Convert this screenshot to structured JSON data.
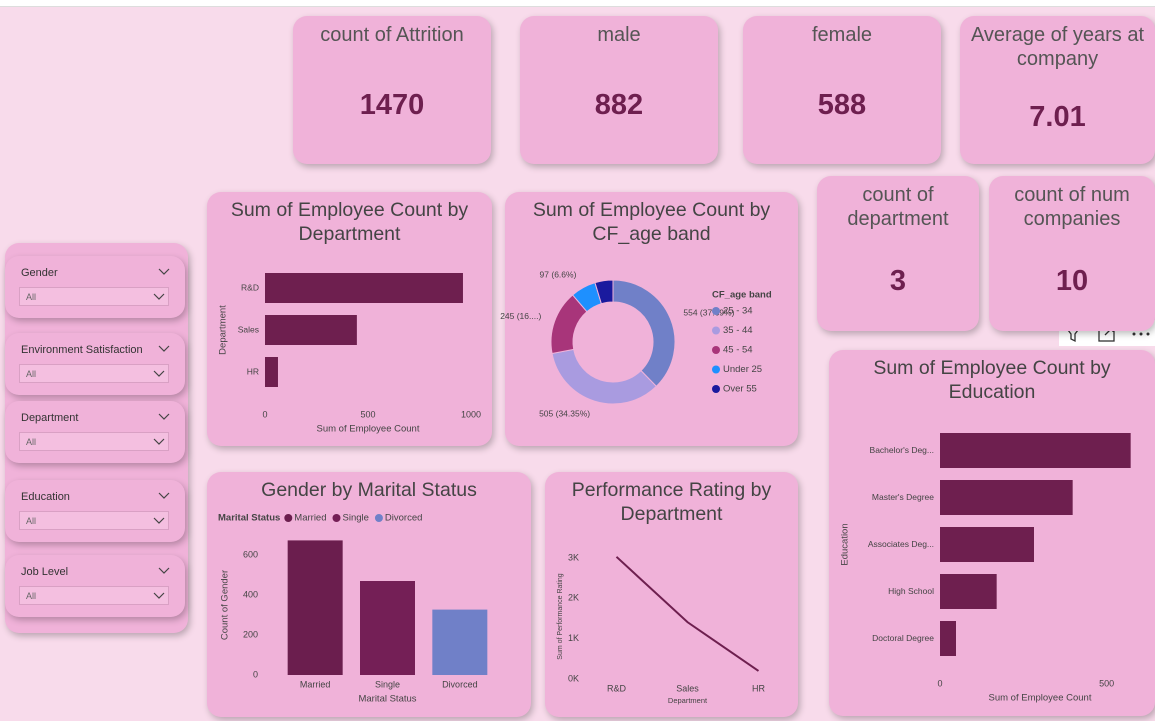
{
  "cards": [
    {
      "title": "count of Attrition",
      "value": 1470
    },
    {
      "title": "male",
      "value": 882
    },
    {
      "title": "female",
      "value": 588
    },
    {
      "title": "Average of years at company",
      "value": 7.01
    },
    {
      "title": "count of department",
      "value": 3
    },
    {
      "title": "count of num companies",
      "value": 10
    }
  ],
  "slicers": [
    {
      "label": "Gender",
      "selection": "All"
    },
    {
      "label": "Environment Satisfaction",
      "selection": "All"
    },
    {
      "label": "Department",
      "selection": "All"
    },
    {
      "label": "Education",
      "selection": "All"
    },
    {
      "label": "Job Level",
      "selection": "All"
    }
  ],
  "chart_data": [
    {
      "type": "bar",
      "orientation": "horizontal",
      "title": "Sum of Employee Count by Department",
      "categories": [
        "R&D",
        "Sales",
        "HR"
      ],
      "values": [
        961,
        446,
        63
      ],
      "color": "#6e1f4f",
      "xlim": [
        0,
        1000
      ],
      "xticks": [
        0,
        500,
        1000
      ],
      "x_label": "Sum of Employee Count",
      "y_label": "Department",
      "grid": false
    },
    {
      "type": "donut",
      "title": "Sum of Employee Count by CF_age band",
      "legend_title": "CF_age band",
      "categories": [
        "25 - 34",
        "35 - 44",
        "45 - 54",
        "Under 25",
        "Over 55"
      ],
      "values": [
        554,
        505,
        245,
        97,
        69
      ],
      "value_labels": [
        "554 (37.69%)",
        "505 (34.35%)",
        "245 (16....)",
        "97 (6.6%)",
        null
      ],
      "colors": [
        "#7080c8",
        "#a99be0",
        "#a8357a",
        "#1e90ff",
        "#1a1a9e"
      ]
    },
    {
      "type": "bar",
      "orientation": "vertical",
      "title": "Gender by Marital Status",
      "legend_title": "Marital Status",
      "categories": [
        "Married",
        "Single",
        "Divorced"
      ],
      "values": [
        673,
        470,
        327
      ],
      "colors": [
        "#6b1e4e",
        "#741f56",
        "#7080c8"
      ],
      "ylim": [
        0,
        700
      ],
      "yticks": [
        0,
        200,
        400,
        600
      ],
      "x_label": "Marital Status",
      "y_label": "Count of Gender",
      "grid": false
    },
    {
      "type": "line",
      "title": "Performance Rating by Department",
      "categories": [
        "R&D",
        "Sales",
        "HR"
      ],
      "values": [
        3030,
        1410,
        199
      ],
      "color": "#6e1f4f",
      "ylim": [
        0,
        3100
      ],
      "yticks": [
        {
          "value": 0,
          "label": "0K"
        },
        {
          "value": 1000,
          "label": "1K"
        },
        {
          "value": 2000,
          "label": "2K"
        },
        {
          "value": 3000,
          "label": "3K"
        }
      ],
      "x_label": "Department",
      "y_label": "Sum of Performance Rating",
      "grid": false
    },
    {
      "type": "bar",
      "orientation": "horizontal",
      "title": "Sum of Employee Count by Education",
      "categories": [
        "Bachelor's Deg...",
        "Master's Degree",
        "Associates Deg...",
        "High School",
        "Doctoral Degree"
      ],
      "values": [
        572,
        398,
        282,
        170,
        48
      ],
      "color": "#6e1f4f",
      "xlim": [
        0,
        600
      ],
      "xticks": [
        0,
        500
      ],
      "x_label": "Sum of Employee Count",
      "y_label": "Education",
      "grid": false
    }
  ]
}
